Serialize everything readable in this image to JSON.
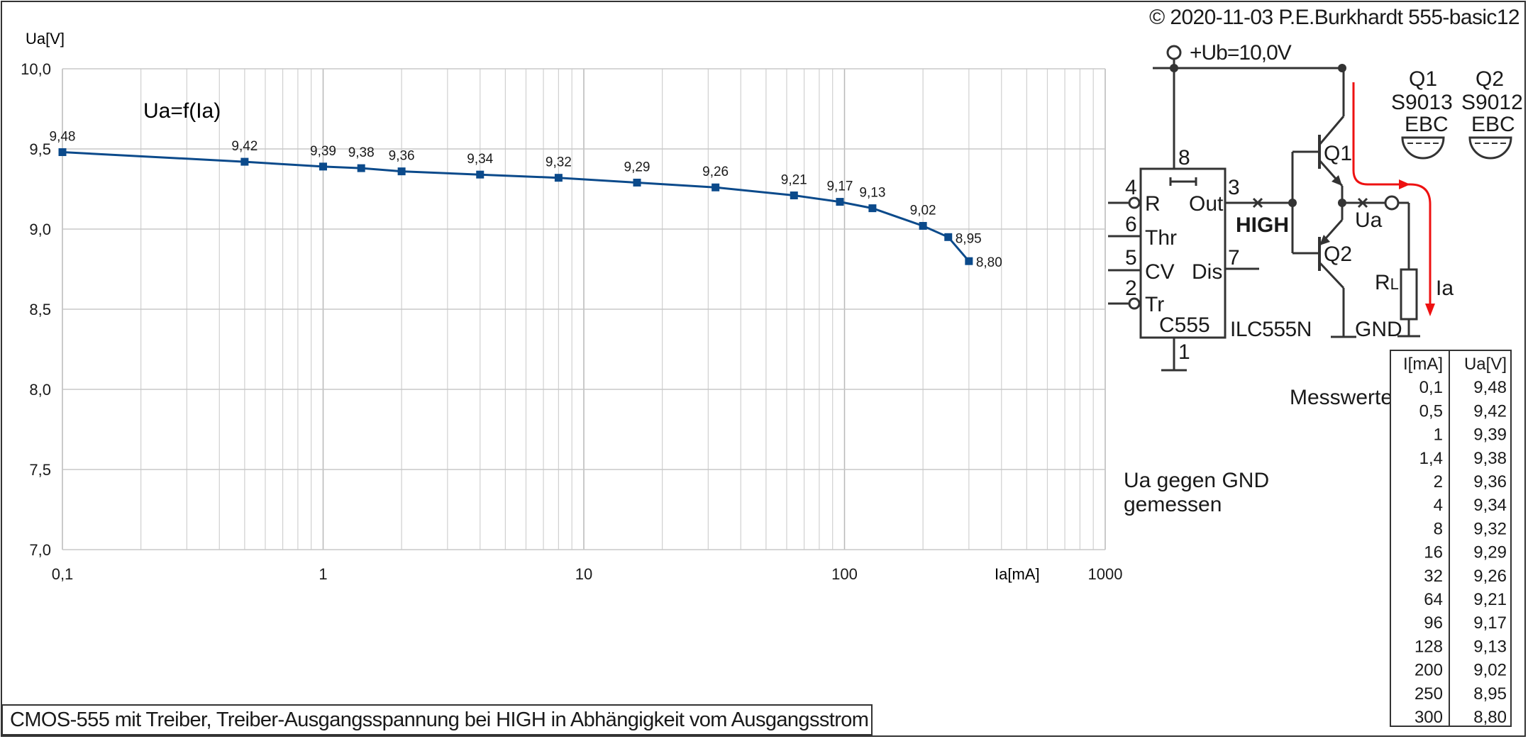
{
  "copyright": "© 2020-11-03 P.E.Burkhardt 555-basic12",
  "caption": "CMOS-555 mit Treiber, Treiber-Ausgangsspannung bei HIGH in Abhängigkeit vom Ausgangsstrom",
  "chart_data": {
    "type": "line",
    "title": "Ua=f(Ia)",
    "xlabel": "Ia[mA]",
    "ylabel": "Ua[V]",
    "x_scale": "log",
    "xlim": [
      0.1,
      1000
    ],
    "ylim": [
      7.0,
      10.0
    ],
    "grid": true,
    "x_tick_labels": [
      "0,1",
      "1",
      "10",
      "100",
      "1000"
    ],
    "y_tick_labels": [
      "10,0",
      "9,5",
      "9,0",
      "8,5",
      "8,0",
      "7,5",
      "7,0"
    ],
    "series": [
      {
        "color": "#0b4a8b",
        "x": [
          0.1,
          0.5,
          1,
          1.4,
          2,
          4,
          8,
          16,
          32,
          64,
          96,
          128,
          200,
          250,
          300
        ],
        "y": [
          9.48,
          9.42,
          9.39,
          9.38,
          9.36,
          9.34,
          9.32,
          9.29,
          9.26,
          9.21,
          9.17,
          9.13,
          9.02,
          8.95,
          8.8
        ],
        "labels": [
          "9,48",
          "9,42",
          "9,39",
          "9,38",
          "9,36",
          "9,34",
          "9,32",
          "9,29",
          "9,26",
          "9,21",
          "9,17",
          "9,13",
          "9,02",
          "8,95",
          "8,80"
        ]
      }
    ]
  },
  "schematic": {
    "supply": "+Ub=10,0V",
    "pin8": "8",
    "pin4": "4",
    "pin4_name": "R",
    "pin6": "6",
    "pin6_name": "Thr",
    "pin5": "5",
    "pin5_name": "CV",
    "pin2": "2",
    "pin2_name": "Tr",
    "pin3": "3",
    "pin3_name": "Out",
    "pin7": "7",
    "pin7_name": "Dis",
    "pin1": "1",
    "chip": "C555",
    "part": "ILC555N",
    "high": "HIGH",
    "q1": "Q1",
    "q2": "Q2",
    "ua": "Ua",
    "ia": "Ia",
    "rl_main": "R",
    "rl_sub": "L",
    "gnd": "GND",
    "q1_name": "Q1",
    "q1_type": "S9013",
    "q1_pins": "EBC",
    "q2_name": "Q2",
    "q2_type": "S9012",
    "q2_pins": "EBC",
    "note_line1": "Ua gegen GND",
    "note_line2": "gemessen"
  },
  "table": {
    "title": "Messwerte",
    "headers": [
      "I[mA]",
      "Ua[V]"
    ],
    "rows": [
      [
        "0,1",
        "9,48"
      ],
      [
        "0,5",
        "9,42"
      ],
      [
        "1",
        "9,39"
      ],
      [
        "1,4",
        "9,38"
      ],
      [
        "2",
        "9,36"
      ],
      [
        "4",
        "9,34"
      ],
      [
        "8",
        "9,32"
      ],
      [
        "16",
        "9,29"
      ],
      [
        "32",
        "9,26"
      ],
      [
        "64",
        "9,21"
      ],
      [
        "96",
        "9,17"
      ],
      [
        "128",
        "9,13"
      ],
      [
        "200",
        "9,02"
      ],
      [
        "250",
        "8,95"
      ],
      [
        "300",
        "8,80"
      ]
    ]
  }
}
